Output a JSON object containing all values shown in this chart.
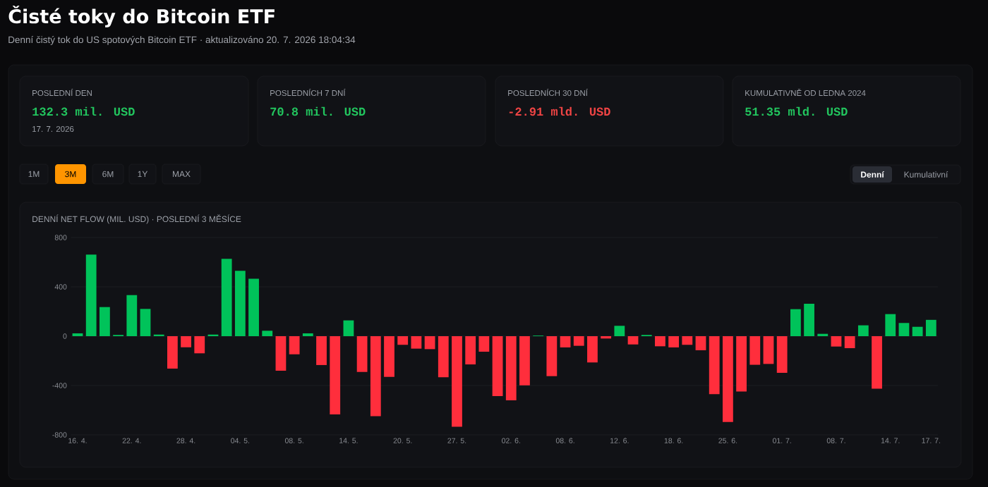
{
  "chart_data": [
    {
      "type": "other",
      "title": "Čisté toky do Bitcoin ETF",
      "subtitle": "Denní čistý tok do US spotových Bitcoin ETF · aktualizováno 20. 7. 2026 18:04:34",
      "annotations": [
        "POSLEDNÍ DEN",
        "132.3 mil. USD",
        "17. 7. 2026",
        "POSLEDNÍCH 7 DNÍ",
        "70.8 mil. USD",
        "POSLEDNÍCH 30 DNÍ",
        "-2.91 mld. USD",
        "KUMULATIVNĚ OD LEDNA 2024",
        "51.35 mld. USD",
        "1M",
        "3M",
        "6M",
        "1Y",
        "MAX",
        "Denní",
        "Kumulativní"
      ]
    },
    {
      "type": "bar",
      "title": "DENNÍ NET FLOW (MIL. USD) · POSLEDNÍ 3 MĚSÍCE",
      "categories": [
        "16. 4.",
        null,
        null,
        null,
        "22. 4.",
        null,
        null,
        null,
        "28. 4.",
        null,
        null,
        null,
        "04. 5.",
        null,
        null,
        null,
        "08. 5.",
        null,
        null,
        null,
        "14. 5.",
        null,
        null,
        null,
        "20. 5.",
        null,
        null,
        null,
        "27. 5.",
        null,
        null,
        null,
        "02. 6.",
        null,
        null,
        null,
        "08. 6.",
        null,
        null,
        null,
        "12. 6.",
        null,
        null,
        null,
        "18. 6.",
        null,
        null,
        null,
        "25. 6.",
        null,
        null,
        null,
        "01. 7.",
        null,
        null,
        null,
        "08. 7.",
        null,
        null,
        null,
        "14. 7.",
        null,
        null,
        "17. 7."
      ],
      "values": [
        23,
        661,
        236,
        10,
        333,
        221,
        13,
        -263,
        -90,
        -139,
        13,
        627,
        530,
        465,
        44,
        -280,
        -147,
        23,
        -234,
        -634,
        128,
        -290,
        -648,
        -330,
        -70,
        -101,
        -105,
        -333,
        -735,
        -229,
        -126,
        -486,
        -520,
        -398,
        5,
        -324,
        -91,
        -78,
        -213,
        -19,
        84,
        -67,
        10,
        -82,
        -91,
        -70,
        -114,
        -470,
        -695,
        -448,
        -232,
        -225,
        -297,
        219,
        263,
        19,
        -84,
        -97,
        88,
        -425,
        179,
        107,
        76,
        132.3
      ],
      "colors": [
        "#00c35a",
        "#00c35a",
        "#00c35a",
        "#00c35a",
        "#00c35a",
        "#00c35a",
        "#00c35a",
        "#ff2e3c",
        "#ff2e3c",
        "#ff2e3c",
        "#00c35a",
        "#00c35a",
        "#00c35a",
        "#00c35a",
        "#00c35a",
        "#ff2e3c",
        "#ff2e3c",
        "#00c35a",
        "#ff2e3c",
        "#ff2e3c",
        "#00c35a",
        "#ff2e3c",
        "#ff2e3c",
        "#ff2e3c",
        "#ff2e3c",
        "#ff2e3c",
        "#ff2e3c",
        "#ff2e3c",
        "#ff2e3c",
        "#ff2e3c",
        "#ff2e3c",
        "#ff2e3c",
        "#ff2e3c",
        "#ff2e3c",
        "#00c35a",
        "#ff2e3c",
        "#ff2e3c",
        "#ff2e3c",
        "#ff2e3c",
        "#ff2e3c",
        "#00c35a",
        "#ff2e3c",
        "#00c35a",
        "#ff2e3c",
        "#ff2e3c",
        "#ff2e3c",
        "#ff2e3c",
        "#ff2e3c",
        "#ff2e3c",
        "#ff2e3c",
        "#ff2e3c",
        "#ff2e3c",
        "#ff2e3c",
        "#00c35a",
        "#00c35a",
        "#00c35a",
        "#ff2e3c",
        "#ff2e3c",
        "#00c35a",
        "#ff2e3c",
        "#00c35a",
        "#00c35a",
        "#00c35a",
        "#00c35a"
      ],
      "ylim": [
        -800,
        800
      ],
      "yticks": [
        -800,
        -400,
        0,
        400,
        800
      ],
      "grid": "y"
    }
  ]
}
